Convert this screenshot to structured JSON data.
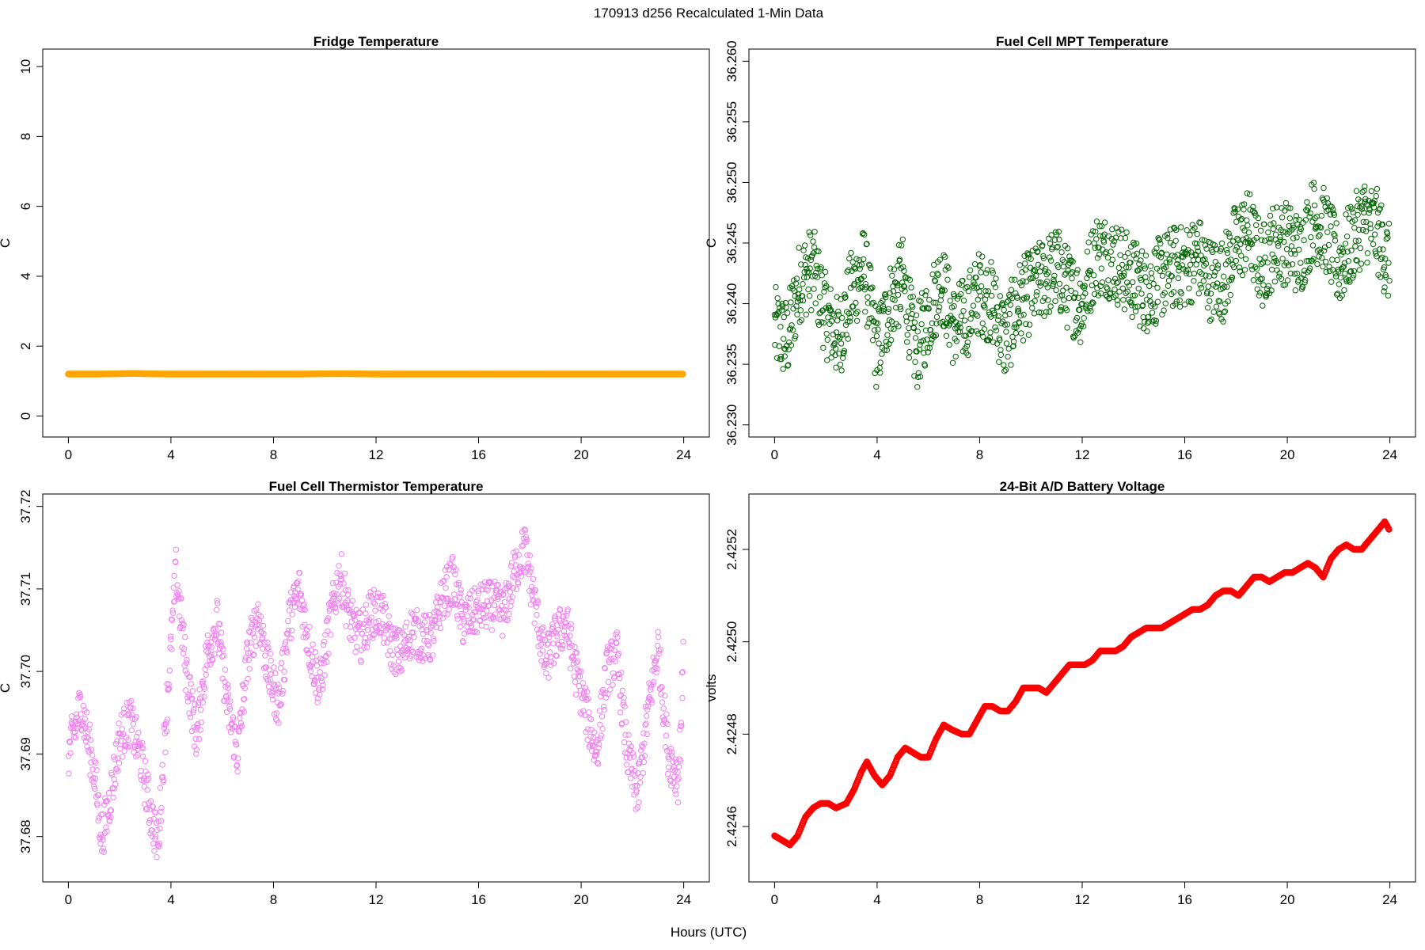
{
  "figure": {
    "suptitle": "170913   d256   Recalculated 1-Min Data",
    "xlabel": "Hours (UTC)"
  },
  "chart_data": [
    {
      "id": "fridge",
      "type": "scatter",
      "title": "Fridge Temperature",
      "xlabel": "",
      "ylabel": "C",
      "xlim": [
        -1,
        25
      ],
      "ylim": [
        -0.6,
        10.5
      ],
      "xticks": [
        0,
        4,
        8,
        12,
        16,
        20,
        24
      ],
      "xtick_labels": [
        "0",
        "4",
        "8",
        "12",
        "16",
        "20",
        "24"
      ],
      "yticks": [
        0,
        2,
        4,
        6,
        8,
        10
      ],
      "ytick_labels": [
        "0",
        "2",
        "4",
        "6",
        "8",
        "10"
      ],
      "color": "#FFA500",
      "marker": "open-circle",
      "series": [
        {
          "x": [
            0,
            1,
            2,
            2.5,
            3,
            4,
            5,
            6,
            7,
            8,
            9,
            10,
            11,
            12,
            13,
            14,
            15,
            16,
            17,
            18,
            19,
            20,
            21,
            22,
            23,
            24
          ],
          "values": [
            1.2,
            1.2,
            1.21,
            1.22,
            1.21,
            1.2,
            1.2,
            1.2,
            1.2,
            1.2,
            1.2,
            1.21,
            1.21,
            1.2,
            1.2,
            1.2,
            1.2,
            1.2,
            1.2,
            1.2,
            1.2,
            1.2,
            1.2,
            1.2,
            1.2,
            1.2
          ]
        }
      ]
    },
    {
      "id": "mpt",
      "type": "scatter",
      "title": "Fuel Cell MPT Temperature",
      "xlabel": "",
      "ylabel": "C",
      "xlim": [
        -1,
        25
      ],
      "ylim": [
        36.229,
        36.261
      ],
      "xticks": [
        0,
        4,
        8,
        12,
        16,
        20,
        24
      ],
      "xtick_labels": [
        "0",
        "4",
        "8",
        "12",
        "16",
        "20",
        "24"
      ],
      "yticks": [
        36.23,
        36.235,
        36.24,
        36.245,
        36.25,
        36.255,
        36.26
      ],
      "ytick_labels": [
        "36.230",
        "36.235",
        "36.240",
        "36.245",
        "36.250",
        "36.255",
        "36.260"
      ],
      "color": "#006400",
      "marker": "open-circle",
      "series": [
        {
          "x": [
            0,
            0.5,
            1,
            1.5,
            2,
            2.5,
            3,
            3.5,
            4,
            4.5,
            5,
            5.5,
            6,
            6.5,
            7,
            7.5,
            8,
            8.5,
            9,
            9.5,
            10,
            10.5,
            11,
            11.5,
            12,
            12.5,
            13,
            13.5,
            14,
            14.5,
            15,
            15.5,
            16,
            16.5,
            17,
            17.5,
            18,
            18.5,
            19,
            19.5,
            20,
            20.5,
            21,
            21.5,
            22,
            22.5,
            23,
            23.5,
            24
          ],
          "values": [
            36.238,
            36.237,
            36.242,
            36.243,
            36.239,
            36.237,
            36.241,
            36.243,
            36.236,
            36.24,
            36.242,
            36.236,
            36.239,
            36.242,
            36.238,
            36.239,
            36.241,
            36.24,
            36.237,
            36.24,
            36.241,
            36.242,
            36.243,
            36.241,
            36.24,
            36.244,
            36.244,
            36.243,
            36.242,
            36.241,
            36.242,
            36.243,
            36.243,
            36.244,
            36.242,
            36.242,
            36.245,
            36.246,
            36.243,
            36.245,
            36.245,
            36.244,
            36.247,
            36.246,
            36.243,
            36.245,
            36.247,
            36.246,
            36.243
          ],
          "spread": 0.0035
        }
      ]
    },
    {
      "id": "thermistor",
      "type": "scatter",
      "title": "Fuel Cell Thermistor Temperature",
      "xlabel": "",
      "ylabel": "C",
      "xlim": [
        -1,
        25
      ],
      "ylim": [
        37.6745,
        37.7215
      ],
      "xticks": [
        0,
        4,
        8,
        12,
        16,
        20,
        24
      ],
      "xtick_labels": [
        "0",
        "4",
        "8",
        "12",
        "16",
        "20",
        "24"
      ],
      "yticks": [
        37.68,
        37.69,
        37.7,
        37.71,
        37.72
      ],
      "ytick_labels": [
        "37.68",
        "37.69",
        "37.70",
        "37.71",
        "37.72"
      ],
      "color": "#EE82EE",
      "marker": "open-circle",
      "series": [
        {
          "x": [
            0,
            0.5,
            1,
            1.3,
            1.6,
            2,
            2.4,
            2.8,
            3.2,
            3.5,
            3.8,
            4.2,
            4.6,
            5,
            5.4,
            5.8,
            6.2,
            6.6,
            7,
            7.4,
            7.8,
            8.2,
            8.6,
            9,
            9.4,
            9.8,
            10.2,
            10.6,
            11,
            11.4,
            11.8,
            12.2,
            12.6,
            13,
            13.4,
            13.8,
            14.2,
            14.6,
            15,
            15.4,
            15.8,
            16.2,
            16.6,
            17,
            17.4,
            17.8,
            18.2,
            18.6,
            19,
            19.4,
            19.8,
            20.2,
            20.6,
            21,
            21.4,
            21.8,
            22.2,
            22.6,
            23,
            23.4,
            23.8,
            24
          ],
          "values": [
            37.69,
            37.696,
            37.688,
            37.68,
            37.684,
            37.692,
            37.694,
            37.69,
            37.683,
            37.679,
            37.694,
            37.712,
            37.7,
            37.692,
            37.702,
            37.706,
            37.696,
            37.69,
            37.702,
            37.707,
            37.7,
            37.696,
            37.706,
            37.71,
            37.703,
            37.698,
            37.706,
            37.712,
            37.706,
            37.704,
            37.707,
            37.707,
            37.703,
            37.702,
            37.705,
            37.704,
            37.704,
            37.709,
            37.711,
            37.706,
            37.707,
            37.708,
            37.708,
            37.707,
            37.712,
            37.715,
            37.708,
            37.701,
            37.704,
            37.706,
            37.7,
            37.695,
            37.69,
            37.7,
            37.702,
            37.69,
            37.685,
            37.695,
            37.703,
            37.69,
            37.687,
            37.702
          ],
          "spread": 0.003
        }
      ]
    },
    {
      "id": "battery",
      "type": "line",
      "title": "24-Bit A/D Battery Voltage",
      "xlabel": "",
      "ylabel": "volts",
      "xlim": [
        -1,
        25
      ],
      "ylim": [
        2.42448,
        2.42532
      ],
      "xticks": [
        0,
        4,
        8,
        12,
        16,
        20,
        24
      ],
      "xtick_labels": [
        "0",
        "4",
        "8",
        "12",
        "16",
        "20",
        "24"
      ],
      "yticks": [
        2.4246,
        2.4248,
        2.425,
        2.4252
      ],
      "ytick_labels": [
        "2.4246",
        "2.4248",
        "2.4250",
        "2.4252"
      ],
      "color": "#FF0000",
      "marker": "open-circle",
      "series": [
        {
          "x": [
            0,
            0.3,
            0.6,
            0.9,
            1.2,
            1.5,
            1.8,
            2.1,
            2.4,
            2.8,
            3.1,
            3.4,
            3.6,
            3.9,
            4.2,
            4.5,
            4.8,
            5.1,
            5.4,
            5.7,
            6.0,
            6.3,
            6.6,
            6.9,
            7.3,
            7.6,
            7.9,
            8.2,
            8.5,
            8.8,
            9.1,
            9.4,
            9.7,
            10.0,
            10.3,
            10.6,
            10.9,
            11.2,
            11.5,
            11.8,
            12.1,
            12.4,
            12.7,
            13.0,
            13.3,
            13.6,
            13.9,
            14.2,
            14.5,
            14.8,
            15.1,
            15.4,
            15.7,
            16.0,
            16.3,
            16.6,
            16.9,
            17.2,
            17.5,
            17.8,
            18.1,
            18.4,
            18.7,
            19.0,
            19.3,
            19.6,
            19.9,
            20.2,
            20.5,
            20.8,
            21.1,
            21.4,
            21.7,
            22.0,
            22.3,
            22.6,
            22.9,
            23.2,
            23.5,
            23.8,
            24.0
          ],
          "values": [
            2.42458,
            2.42457,
            2.42456,
            2.42458,
            2.42462,
            2.42464,
            2.42465,
            2.42465,
            2.42464,
            2.42465,
            2.42468,
            2.42472,
            2.42474,
            2.42471,
            2.42469,
            2.42471,
            2.42475,
            2.42477,
            2.42476,
            2.42475,
            2.42475,
            2.42479,
            2.42482,
            2.42481,
            2.4248,
            2.4248,
            2.42483,
            2.42486,
            2.42486,
            2.42485,
            2.42485,
            2.42487,
            2.4249,
            2.4249,
            2.4249,
            2.42489,
            2.42491,
            2.42493,
            2.42495,
            2.42495,
            2.42495,
            2.42496,
            2.42498,
            2.42498,
            2.42498,
            2.42499,
            2.42501,
            2.42502,
            2.42503,
            2.42503,
            2.42503,
            2.42504,
            2.42505,
            2.42506,
            2.42507,
            2.42507,
            2.42508,
            2.4251,
            2.42511,
            2.42511,
            2.4251,
            2.42512,
            2.42514,
            2.42514,
            2.42513,
            2.42514,
            2.42515,
            2.42515,
            2.42516,
            2.42517,
            2.42516,
            2.42514,
            2.42518,
            2.4252,
            2.42521,
            2.4252,
            2.4252,
            2.42522,
            2.42524,
            2.42526,
            2.42524
          ]
        }
      ]
    }
  ]
}
